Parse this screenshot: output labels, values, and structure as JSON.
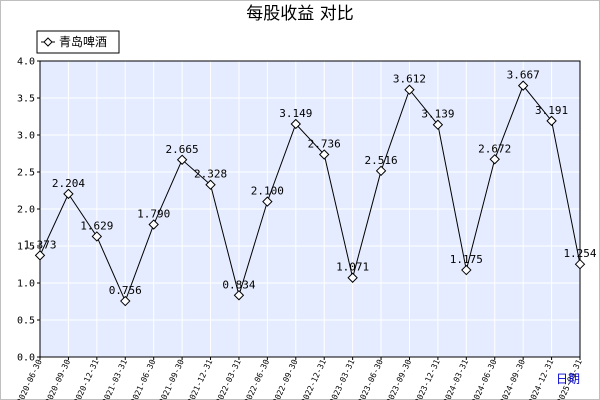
{
  "chart_data": {
    "type": "line",
    "title": "每股收益  对比",
    "legend": [
      "青岛啤酒"
    ],
    "legend_position": "top-left",
    "xlabel": "日期",
    "ylabel": "",
    "ylim": [
      0.0,
      4.0
    ],
    "yticks": [
      "0.0",
      "0.5",
      "1.0",
      "1.5",
      "2.0",
      "2.5",
      "3.0",
      "3.5",
      "4.0"
    ],
    "grid": true,
    "categories": [
      "2020-06-30",
      "2020-09-30",
      "2020-12-31",
      "2021-03-31",
      "2021-06-30",
      "2021-09-30",
      "2021-12-31",
      "2022-03-31",
      "2022-06-30",
      "2022-09-30",
      "2022-12-31",
      "2023-03-31",
      "2023-06-30",
      "2023-09-30",
      "2023-12-31",
      "2024-03-31",
      "2024-06-30",
      "2024-09-30",
      "2024-12-31",
      "2025-03-31"
    ],
    "series": [
      {
        "name": "青岛啤酒",
        "values": [
          1.373,
          2.204,
          1.629,
          0.756,
          1.79,
          2.665,
          2.328,
          0.834,
          2.1,
          3.149,
          2.736,
          1.071,
          2.516,
          3.612,
          3.139,
          1.175,
          2.672,
          3.667,
          3.191,
          1.254
        ],
        "labels": [
          "1.373",
          "2.204",
          "1.629",
          "0.756",
          "1.790",
          "2.665",
          "2.328",
          "0.834",
          "2.100",
          "3.149",
          "2.736",
          "1.071",
          "2.516",
          "3.612",
          "3.139",
          "1.175",
          "2.672",
          "3.667",
          "3.191",
          "1.254"
        ]
      }
    ],
    "colors": {
      "plot_background": "#e6ecff",
      "grid": "#ffffff",
      "line": "#000000",
      "marker_fill": "#ffffff",
      "xlabel": "#0000cc"
    }
  }
}
